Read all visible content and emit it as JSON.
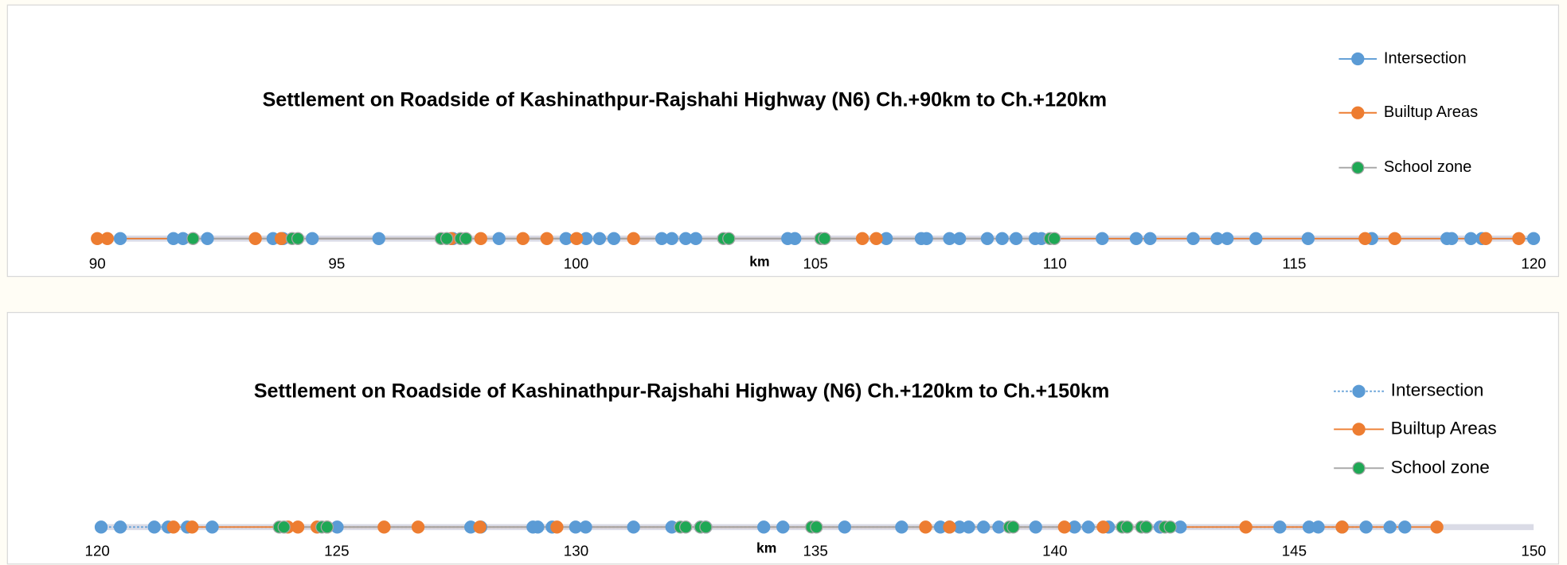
{
  "chart_data": [
    {
      "type": "strip",
      "title": "Settlement on Roadside of Kashinathpur-Rajshahi Highway (N6) Ch.+90km to Ch.+120km",
      "xlabel": "km",
      "xlim": [
        90,
        120
      ],
      "xticks": [
        90,
        95,
        100,
        105,
        110,
        115,
        120
      ],
      "series": [
        {
          "name": "Intersection",
          "color": "#5b9bd5",
          "line_color": "#5b9bd5",
          "line_style": "solid",
          "x": [
            90.48,
            91.59,
            91.79,
            92.3,
            93.67,
            93.88,
            94.49,
            95.88,
            97.43,
            98.39,
            99.79,
            100.21,
            100.49,
            100.79,
            101.79,
            102.0,
            102.29,
            102.5,
            104.42,
            104.57,
            106.48,
            107.21,
            107.32,
            107.8,
            108.01,
            108.59,
            108.9,
            109.19,
            109.59,
            109.72,
            110.99,
            111.7,
            111.99,
            112.89,
            113.39,
            113.6,
            114.2,
            115.29,
            116.62,
            118.19,
            118.29,
            118.69,
            118.92,
            120.0
          ]
        },
        {
          "name": "Builtup Areas",
          "color": "#ed7d31",
          "line_color": "#ed7d31",
          "line_style": "solid",
          "x": [
            90.0,
            90.21,
            93.3,
            93.84,
            97.39,
            98.01,
            98.89,
            99.39,
            100.01,
            101.2,
            105.98,
            106.27,
            116.48,
            117.1,
            119.0,
            119.69
          ]
        },
        {
          "name": "School zone",
          "color": "#1fa855",
          "line_color": "#a5a5a5",
          "line_style": "solid",
          "x": [
            92.0,
            94.07,
            94.19,
            97.18,
            97.3,
            97.59,
            97.7,
            103.08,
            103.19,
            105.11,
            105.19,
            109.9,
            109.99
          ]
        }
      ]
    },
    {
      "type": "strip",
      "title": "Settlement on Roadside of Kashinathpur-Rajshahi Highway (N6) Ch.+120km to Ch.+150km",
      "xlabel": "km",
      "xlim": [
        120,
        150
      ],
      "xticks": [
        120,
        125,
        130,
        135,
        140,
        145,
        150
      ],
      "series": [
        {
          "name": "Intersection",
          "color": "#5b9bd5",
          "line_color": "#5b9bd5",
          "line_style": "dotted",
          "x": [
            120.08,
            120.48,
            121.19,
            121.48,
            121.88,
            122.4,
            125.01,
            127.8,
            128.01,
            129.1,
            129.2,
            129.5,
            129.99,
            130.2,
            131.2,
            132.0,
            132.6,
            132.71,
            133.92,
            134.32,
            135.61,
            136.8,
            137.61,
            137.8,
            138.01,
            138.2,
            138.51,
            138.83,
            139.6,
            140.41,
            140.7,
            141.12,
            141.91,
            142.2,
            142.62,
            144.7,
            145.31,
            145.5,
            146.0,
            146.5,
            147.0,
            147.31
          ]
        },
        {
          "name": "Builtup Areas",
          "color": "#ed7d31",
          "line_color": "#ed7d31",
          "line_style": "solid",
          "x": [
            121.59,
            121.98,
            123.98,
            124.19,
            124.59,
            124.8,
            125.99,
            126.7,
            127.99,
            129.6,
            137.3,
            137.8,
            140.2,
            141.01,
            143.99,
            146.0,
            147.98
          ]
        },
        {
          "name": "School zone",
          "color": "#1fa855",
          "line_color": "#a5a5a5",
          "line_style": "solid",
          "x": [
            123.8,
            123.9,
            124.69,
            124.8,
            132.18,
            132.29,
            132.6,
            132.71,
            134.92,
            135.02,
            139.05,
            139.13,
            141.41,
            141.51,
            141.81,
            141.91,
            142.3,
            142.41
          ]
        }
      ]
    }
  ]
}
